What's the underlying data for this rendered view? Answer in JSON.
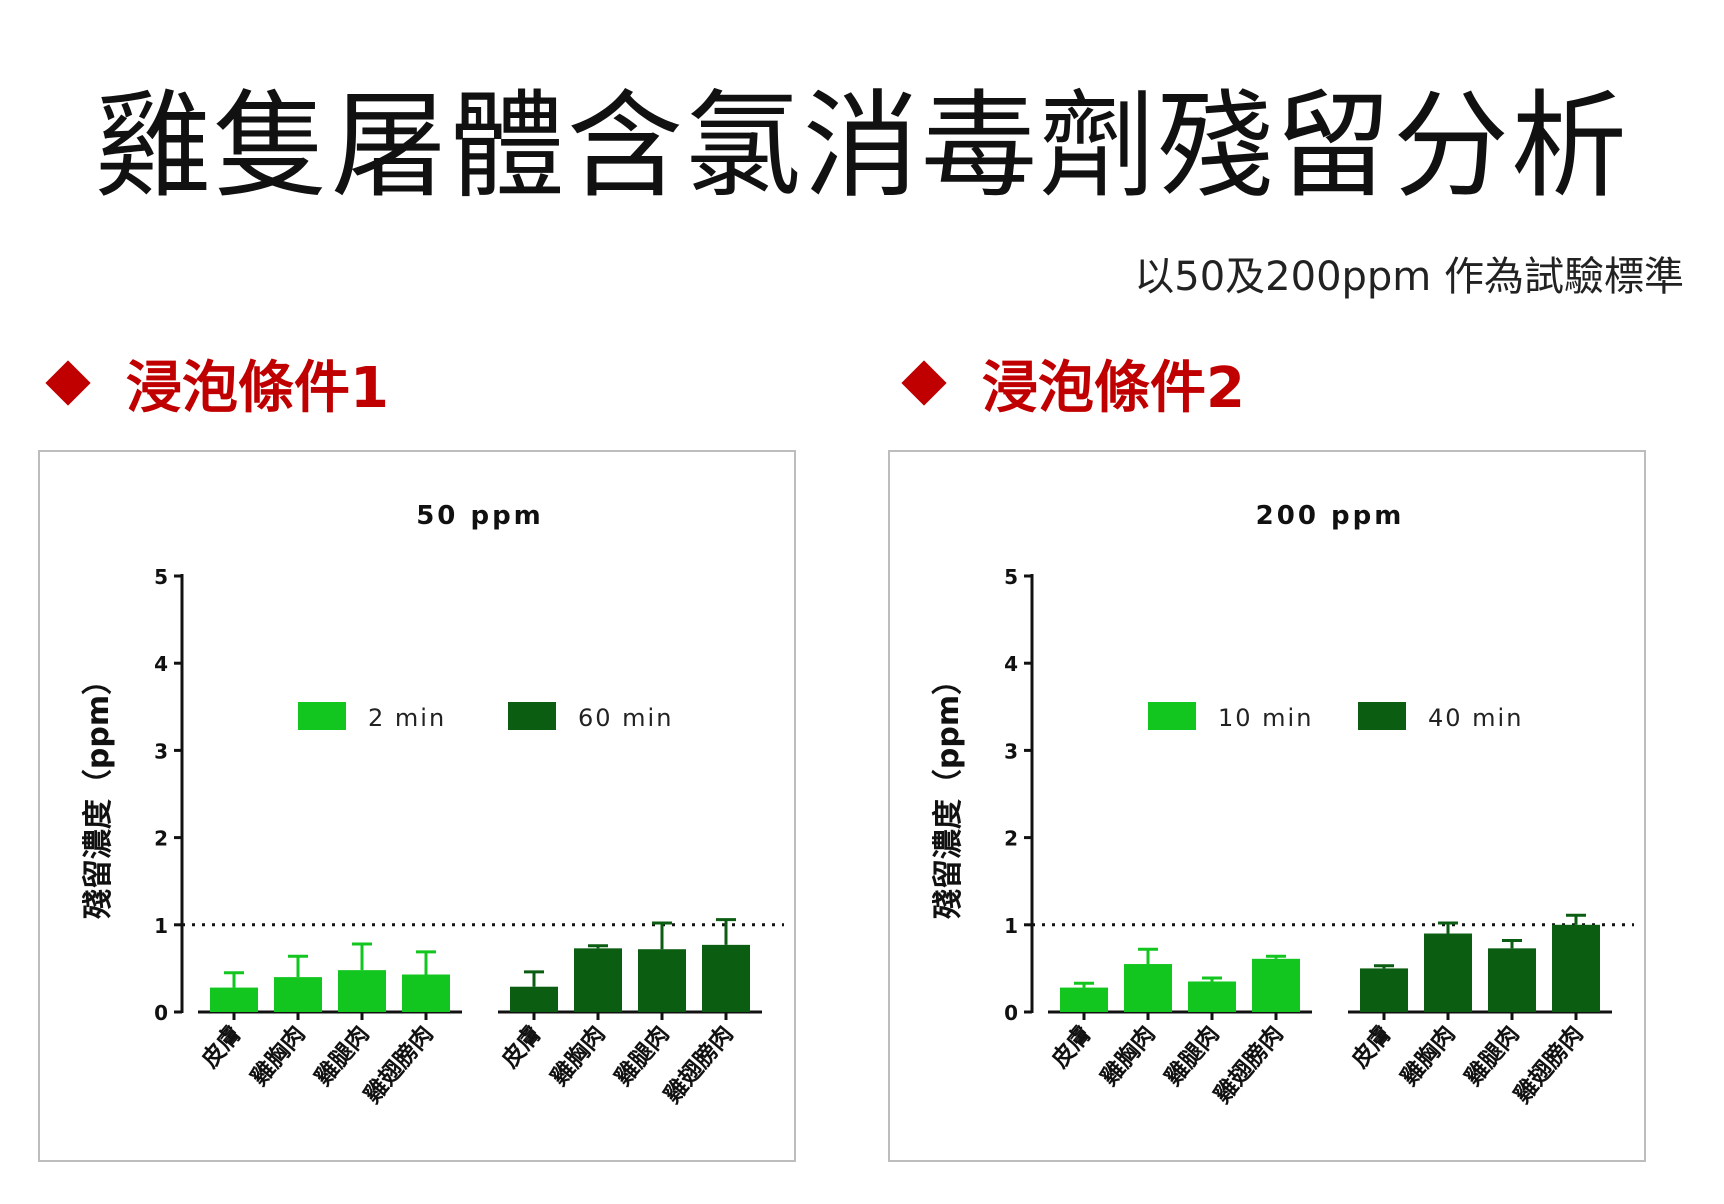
{
  "page": {
    "title": "雞隻屠體含氯消毒劑殘留分析",
    "subtitle": "以50及200ppm 作為試驗標準",
    "sections": [
      {
        "label": "浸泡條件1"
      },
      {
        "label": "浸泡條件2"
      }
    ]
  },
  "colors": {
    "light_green": "#13c61f",
    "dark_green": "#0b5d12",
    "heading_red": "#c00000"
  },
  "icons": {
    "bullet": "diamond-icon"
  },
  "chart_data": [
    {
      "type": "bar",
      "title": "50 ppm",
      "xlabel": "",
      "ylabel": "殘留濃度（ppm）",
      "ylim": [
        0,
        5
      ],
      "yticks": [
        "0",
        "1",
        "2",
        "3",
        "4",
        "5"
      ],
      "reference_line": 1,
      "legend_position": "top-center",
      "groups": [
        {
          "name": "2 min",
          "color": "#13c61f",
          "categories": [
            "皮膚",
            "雞胸肉",
            "雞腿肉",
            "雞翅膀肉"
          ],
          "values": [
            0.28,
            0.4,
            0.48,
            0.43
          ],
          "errors": [
            0.17,
            0.24,
            0.3,
            0.26
          ]
        },
        {
          "name": "60 min",
          "color": "#0b5d12",
          "categories": [
            "皮膚",
            "雞胸肉",
            "雞腿肉",
            "雞翅膀肉"
          ],
          "values": [
            0.29,
            0.73,
            0.72,
            0.77
          ],
          "errors": [
            0.17,
            0.03,
            0.3,
            0.29
          ]
        }
      ]
    },
    {
      "type": "bar",
      "title": "200 ppm",
      "xlabel": "",
      "ylabel": "殘留濃度（ppm）",
      "ylim": [
        0,
        5
      ],
      "yticks": [
        "0",
        "1",
        "2",
        "3",
        "4",
        "5"
      ],
      "reference_line": 1,
      "legend_position": "top-center",
      "groups": [
        {
          "name": "10 min",
          "color": "#13c61f",
          "categories": [
            "皮膚",
            "雞胸肉",
            "雞腿肉",
            "雞翅膀肉"
          ],
          "values": [
            0.28,
            0.55,
            0.35,
            0.61
          ],
          "errors": [
            0.05,
            0.17,
            0.04,
            0.03
          ]
        },
        {
          "name": "40 min",
          "color": "#0b5d12",
          "categories": [
            "皮膚",
            "雞胸肉",
            "雞腿肉",
            "雞翅膀肉"
          ],
          "values": [
            0.5,
            0.9,
            0.73,
            1.0
          ],
          "errors": [
            0.03,
            0.12,
            0.09,
            0.11
          ]
        }
      ]
    }
  ]
}
